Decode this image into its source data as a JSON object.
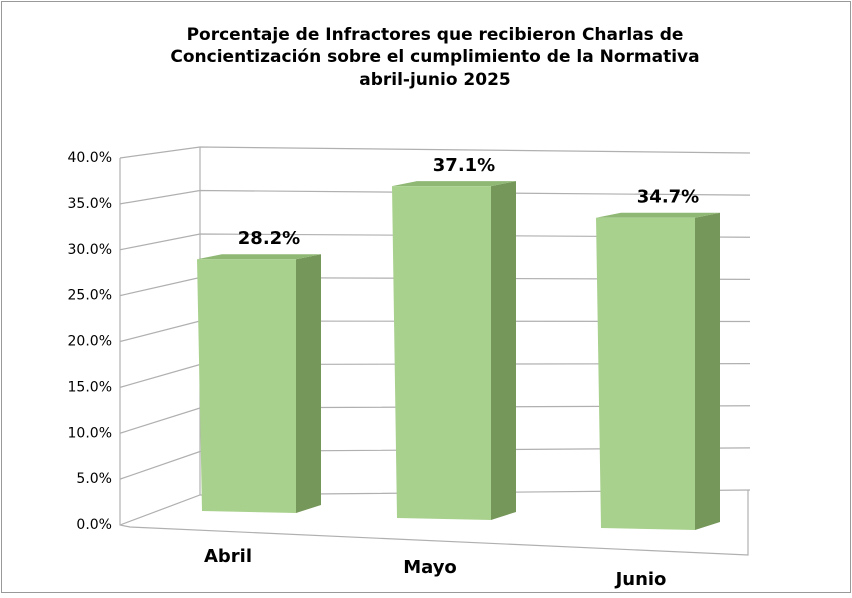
{
  "chart_data": {
    "type": "bar3d",
    "title": [
      "Porcentaje de Infractores que recibieron Charlas de",
      "Concientización sobre el cumplimiento de la Normativa",
      "abril-junio 2025"
    ],
    "categories": [
      "Abril",
      "Mayo",
      "Junio"
    ],
    "values": [
      28.2,
      37.1,
      34.7
    ],
    "value_labels": [
      "28.2%",
      "37.1%",
      "34.7%"
    ],
    "color": "#a9d18e",
    "ylim": [
      0,
      40
    ],
    "yticks": [
      {
        "value": 0,
        "label": "0.0%"
      },
      {
        "value": 5,
        "label": "5.0%"
      },
      {
        "value": 10,
        "label": "10.0%"
      },
      {
        "value": 15,
        "label": "15.0%"
      },
      {
        "value": 20,
        "label": "20.0%"
      },
      {
        "value": 25,
        "label": "25.0%"
      },
      {
        "value": 30,
        "label": "30.0%"
      },
      {
        "value": 35,
        "label": "35.0%"
      },
      {
        "value": 40,
        "label": "40.0%"
      }
    ],
    "grid": true
  }
}
